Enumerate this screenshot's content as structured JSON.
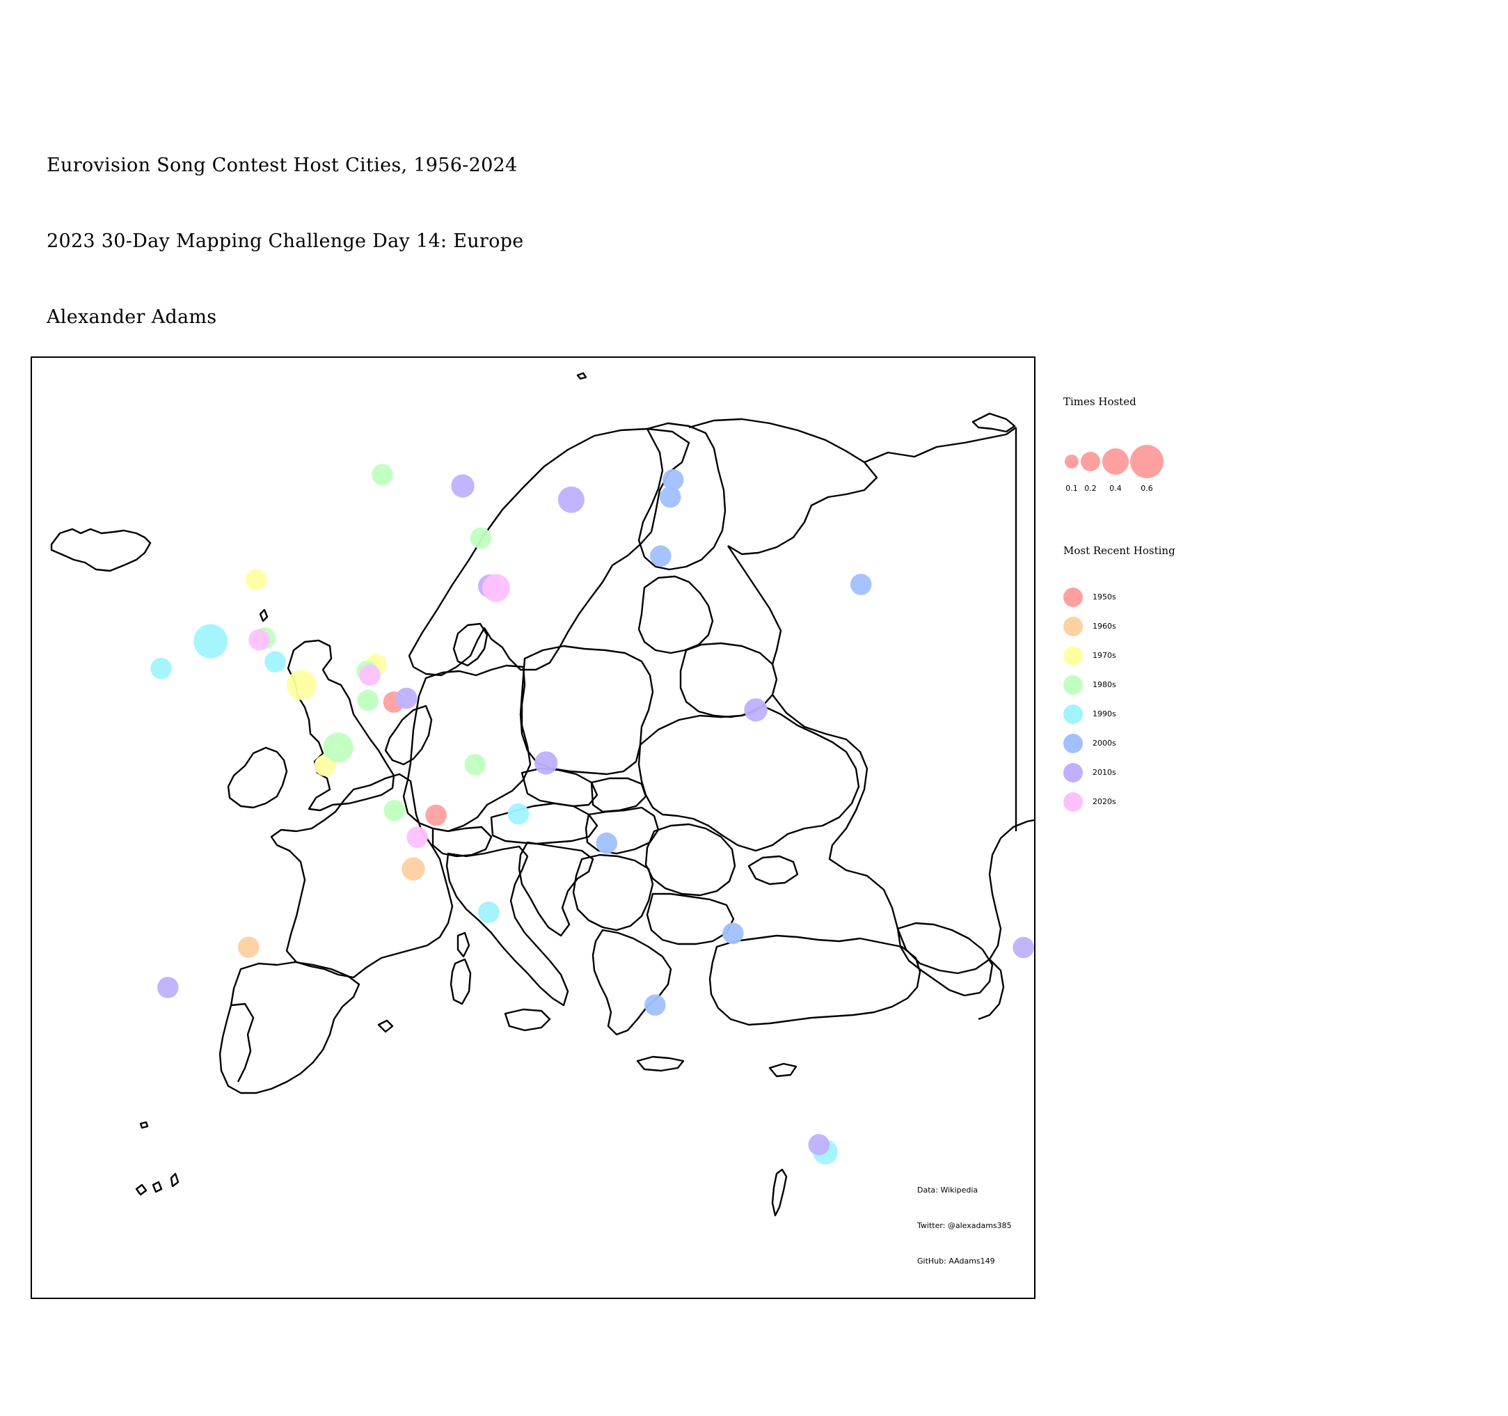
{
  "header": {
    "title": "Eurovision Song Contest Host Cities, 1956-2024",
    "subtitle": "2023 30-Day Mapping Challenge Day 14: Europe",
    "author": "Alexander Adams"
  },
  "credits": {
    "data": "Data: Wikipedia",
    "twitter": "Twitter: @alexadams385",
    "github": "GitHub: AAdams149"
  },
  "legend": {
    "size_title": "Times Hosted",
    "size_values": [
      "0.1",
      "0.2",
      "0.4",
      "0.6"
    ],
    "size_color": "#ffa0a0",
    "decade_title": "Most Recent Hosting",
    "decades": [
      {
        "label": "1950s",
        "color": "#ffa0a0"
      },
      {
        "label": "1960s",
        "color": "#ffd0a0"
      },
      {
        "label": "1970s",
        "color": "#ffffa0"
      },
      {
        "label": "1980s",
        "color": "#c0ffc0"
      },
      {
        "label": "1990s",
        "color": "#a0f4ff"
      },
      {
        "label": "2000s",
        "color": "#a0c0ff"
      },
      {
        "label": "2010s",
        "color": "#c0b0ff"
      },
      {
        "label": "2020s",
        "color": "#ffc0ff"
      }
    ]
  },
  "map": {
    "basemap": "Europe country outlines",
    "host_city_markers": [
      {
        "decade": "1950s",
        "lon": 6.1,
        "lat": 50.78,
        "times_hosted": 0.1
      },
      {
        "decade": "1950s",
        "lon": 8.95,
        "lat": 46.0,
        "times_hosted": 0.1
      },
      {
        "decade": "1960s",
        "lon": 7.42,
        "lat": 43.73,
        "times_hosted": 0.15
      },
      {
        "decade": "1960s",
        "lon": -3.7,
        "lat": 40.42,
        "times_hosted": 0.1
      },
      {
        "decade": "1960s",
        "lon": 12.5,
        "lat": 41.9,
        "times_hosted": 0.1
      },
      {
        "decade": "1970s",
        "lon": -0.12,
        "lat": 51.5,
        "times_hosted": 0.4
      },
      {
        "decade": "1970s",
        "lon": -3.19,
        "lat": 55.95,
        "times_hosted": 0.1
      },
      {
        "decade": "1970s",
        "lon": 1.45,
        "lat": 48.1,
        "times_hosted": 0.1
      },
      {
        "decade": "1970s",
        "lon": 4.9,
        "lat": 52.37,
        "times_hosted": 0.1
      },
      {
        "decade": "1980s",
        "lon": 2.35,
        "lat": 48.86,
        "times_hosted": 0.4
      },
      {
        "decade": "1980s",
        "lon": 5.33,
        "lat": 60.39,
        "times_hosted": 0.1
      },
      {
        "decade": "1980s",
        "lon": 11.97,
        "lat": 57.71,
        "times_hosted": 0.1
      },
      {
        "decade": "1980s",
        "lon": -2.58,
        "lat": 53.48,
        "times_hosted": 0.1
      },
      {
        "decade": "1980s",
        "lon": 4.3,
        "lat": 52.08,
        "times_hosted": 0.1
      },
      {
        "decade": "1980s",
        "lon": 4.35,
        "lat": 50.85,
        "times_hosted": 0.1
      },
      {
        "decade": "1980s",
        "lon": 11.58,
        "lat": 48.14,
        "times_hosted": 0.1
      },
      {
        "decade": "1980s",
        "lon": 6.14,
        "lat": 46.2,
        "times_hosted": 0.1
      },
      {
        "decade": "1990s",
        "lon": -6.26,
        "lat": 53.35,
        "times_hosted": 0.6
      },
      {
        "decade": "1990s",
        "lon": -9.6,
        "lat": 52.2,
        "times_hosted": 0.1
      },
      {
        "decade": "1990s",
        "lon": -1.9,
        "lat": 52.48,
        "times_hosted": 0.1
      },
      {
        "decade": "1990s",
        "lon": 12.5,
        "lat": 41.9,
        "times_hosted": 0.1
      },
      {
        "decade": "1990s",
        "lon": 14.5,
        "lat": 46.05,
        "times_hosted": 0.1
      },
      {
        "decade": "1990s",
        "lon": 35.21,
        "lat": 31.77,
        "times_hosted": 0.2
      },
      {
        "decade": "2000s",
        "lon": 24.94,
        "lat": 60.17,
        "times_hosted": 0.1
      },
      {
        "decade": "2000s",
        "lon": 24.75,
        "lat": 59.44,
        "times_hosted": 0.1
      },
      {
        "decade": "2000s",
        "lon": 24.1,
        "lat": 56.95,
        "times_hosted": 0.1
      },
      {
        "decade": "2000s",
        "lon": 37.62,
        "lat": 55.75,
        "times_hosted": 0.1
      },
      {
        "decade": "2000s",
        "lon": 20.46,
        "lat": 44.82,
        "times_hosted": 0.1
      },
      {
        "decade": "2000s",
        "lon": 28.98,
        "lat": 41.01,
        "times_hosted": 0.1
      },
      {
        "decade": "2000s",
        "lon": 23.73,
        "lat": 37.98,
        "times_hosted": 0.1
      },
      {
        "decade": "2010s",
        "lon": 10.75,
        "lat": 59.91,
        "times_hosted": 0.15
      },
      {
        "decade": "2010s",
        "lon": 18.07,
        "lat": 59.33,
        "times_hosted": 0.25
      },
      {
        "decade": "2010s",
        "lon": 12.57,
        "lat": 55.68,
        "times_hosted": 0.15
      },
      {
        "decade": "2010s",
        "lon": 6.96,
        "lat": 50.94,
        "times_hosted": 0.1
      },
      {
        "decade": "2010s",
        "lon": 16.37,
        "lat": 48.21,
        "times_hosted": 0.15
      },
      {
        "decade": "2010s",
        "lon": 30.52,
        "lat": 50.45,
        "times_hosted": 0.15
      },
      {
        "decade": "2010s",
        "lon": -9.14,
        "lat": 38.72,
        "times_hosted": 0.1
      },
      {
        "decade": "2010s",
        "lon": 49.87,
        "lat": 40.41,
        "times_hosted": 0.1
      },
      {
        "decade": "2010s",
        "lon": 34.78,
        "lat": 32.08,
        "times_hosted": 0.1
      },
      {
        "decade": "2020s",
        "lon": 13.0,
        "lat": 55.6,
        "times_hosted": 0.3
      },
      {
        "decade": "2020s",
        "lon": -2.98,
        "lat": 53.41,
        "times_hosted": 0.1
      },
      {
        "decade": "2020s",
        "lon": 7.68,
        "lat": 45.07,
        "times_hosted": 0.1
      },
      {
        "decade": "2020s",
        "lon": 4.48,
        "lat": 51.92,
        "times_hosted": 0.1
      }
    ]
  }
}
